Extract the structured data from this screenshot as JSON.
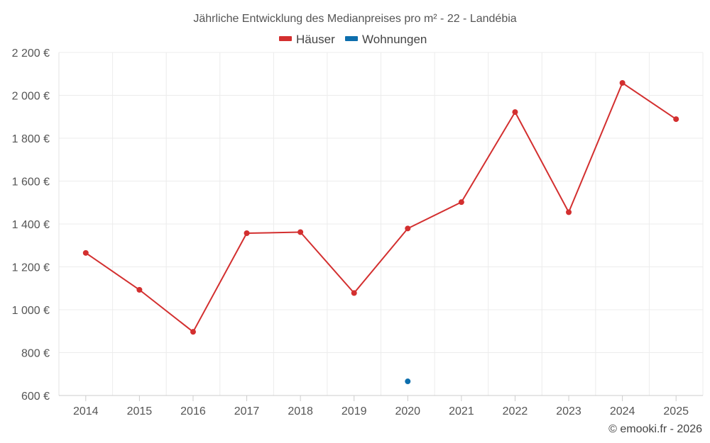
{
  "chart_data": {
    "type": "line",
    "title": "Jährliche Entwicklung des Medianpreises pro m² - 22 - Landébia",
    "categories": [
      "2014",
      "2015",
      "2016",
      "2017",
      "2018",
      "2019",
      "2020",
      "2021",
      "2022",
      "2023",
      "2024",
      "2025"
    ],
    "series": [
      {
        "name": "Häuser",
        "color": "#d32f2f",
        "values": [
          1265,
          1093,
          897,
          1357,
          1362,
          1078,
          1379,
          1502,
          1922,
          1455,
          2058,
          1889
        ]
      },
      {
        "name": "Wohnungen",
        "color": "#0d6ead",
        "values": [
          null,
          null,
          null,
          null,
          null,
          null,
          666,
          null,
          null,
          null,
          null,
          null
        ]
      }
    ],
    "ylim": [
      600,
      2200
    ],
    "yticks": [
      600,
      800,
      1000,
      1200,
      1400,
      1600,
      1800,
      2000,
      2200
    ],
    "ytick_labels": [
      "600 €",
      "800 €",
      "1 000 €",
      "1 200 €",
      "1 400 €",
      "1 600 €",
      "1 800 €",
      "2 000 €",
      "2 200 €"
    ],
    "xlabel": "",
    "ylabel": "",
    "grid": true,
    "legend_position": "top-center",
    "credit": "© emooki.fr - 2026"
  }
}
